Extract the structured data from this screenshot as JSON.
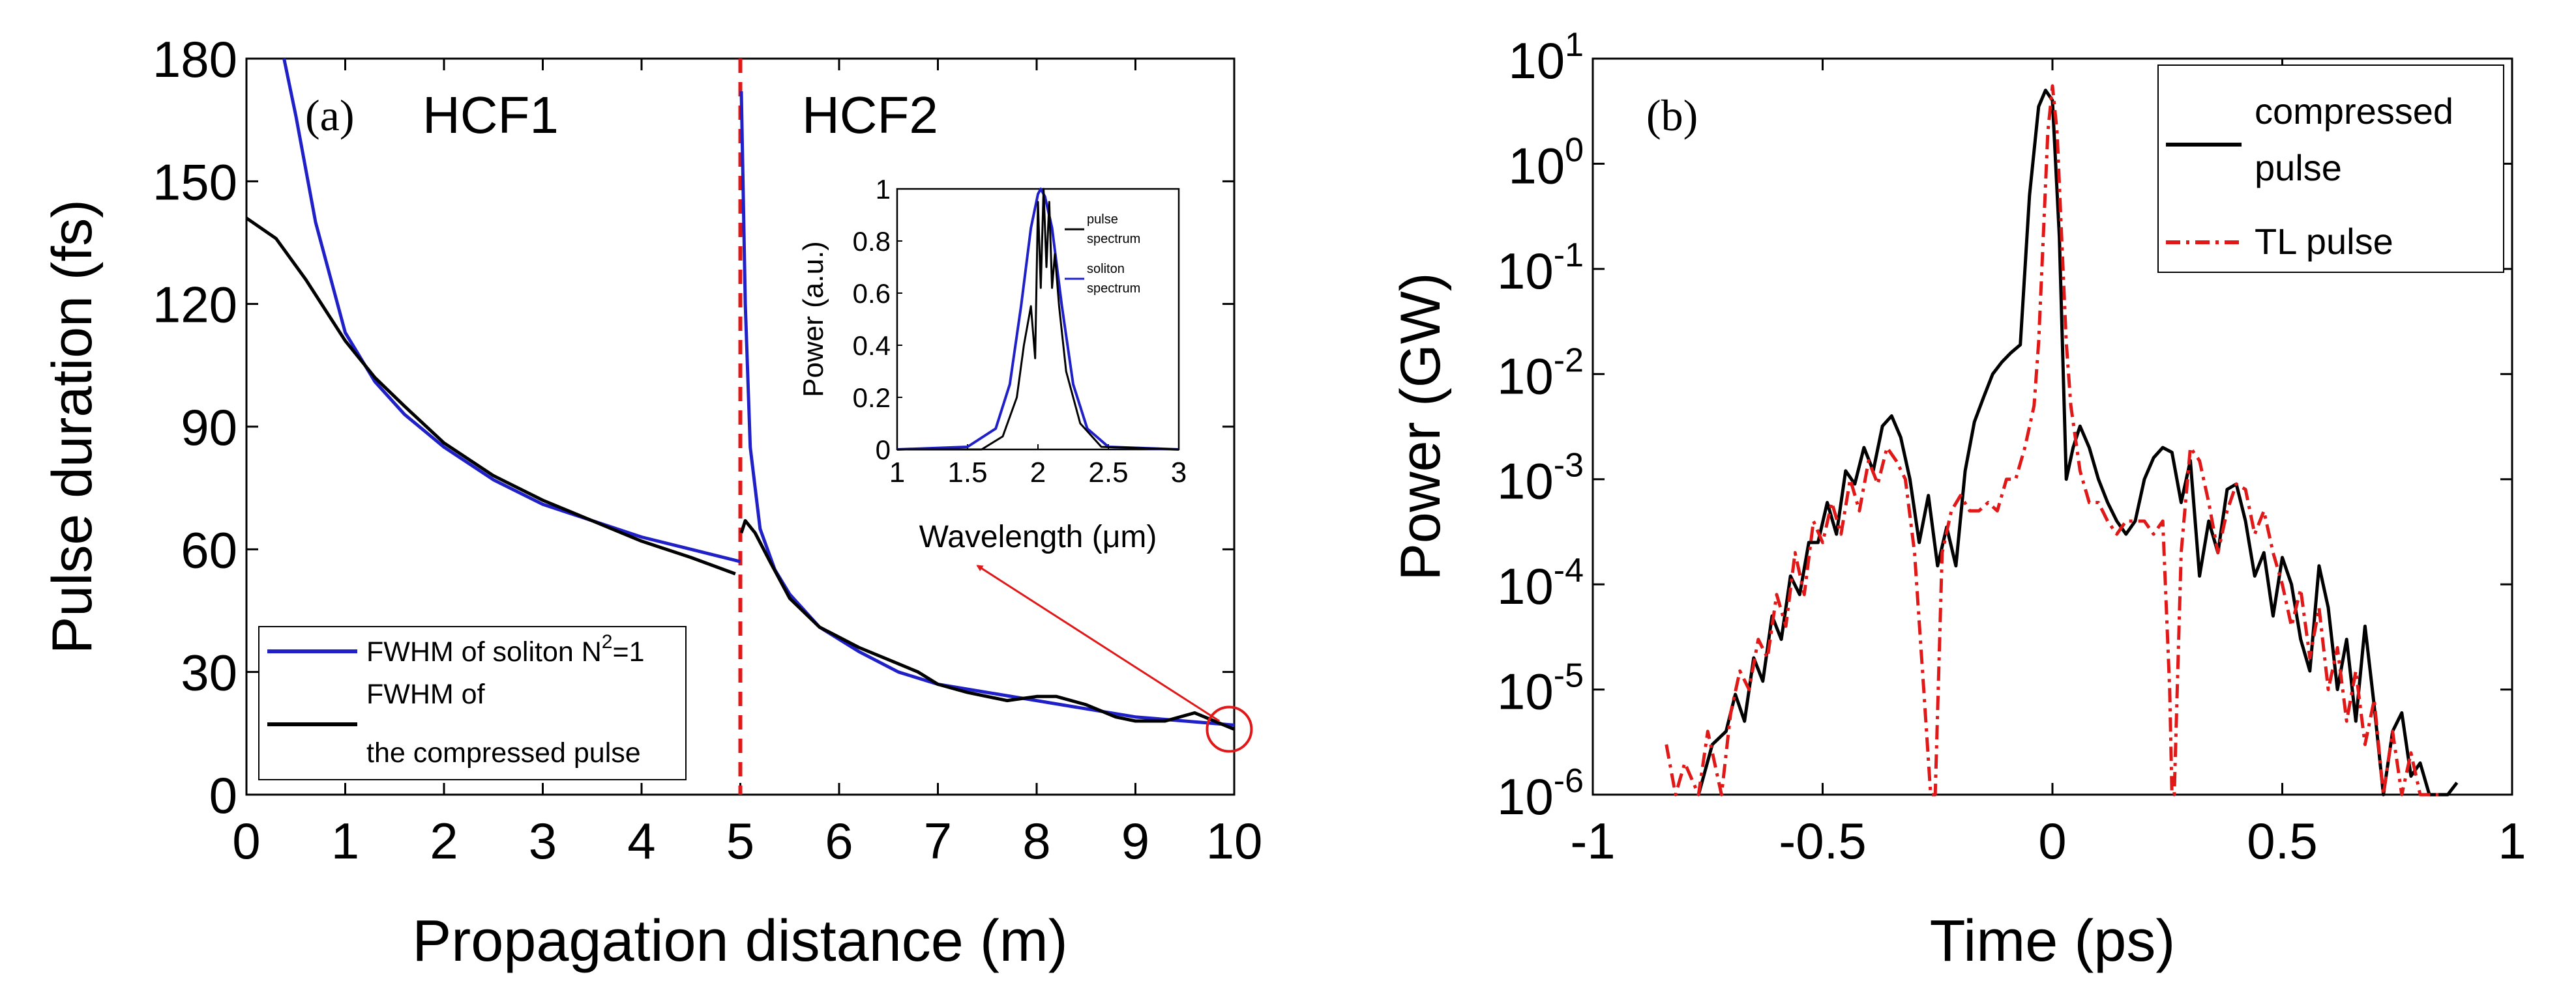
{
  "chart_data": [
    {
      "type": "line",
      "panel_label": "(a)",
      "xlabel": "Propagation distance (m)",
      "ylabel": "Pulse duration (fs)",
      "xlim": [
        0,
        10
      ],
      "ylim": [
        0,
        180
      ],
      "xticks": [
        "0",
        "1",
        "2",
        "3",
        "4",
        "5",
        "6",
        "7",
        "8",
        "9",
        "10"
      ],
      "yticks": [
        "0",
        "30",
        "60",
        "90",
        "120",
        "150",
        "180"
      ],
      "region_labels": [
        "HCF1",
        "HCF2"
      ],
      "divider_x": 5,
      "legend": {
        "position": "bottom-left",
        "soliton_label_prefix": "FWHM of soliton N",
        "soliton_label_sup": "2",
        "soliton_label_suffix": "=1",
        "compressed_label_line1": "FWHM of",
        "compressed_label_line2": "the compressed pulse"
      },
      "series": [
        {
          "name": "FWHM of soliton N2=1",
          "color": "#2020c8",
          "x": [
            0.38,
            0.5,
            0.7,
            1.0,
            1.3,
            1.6,
            2.0,
            2.5,
            3.0,
            3.5,
            4.0,
            4.5,
            5.0
          ],
          "y": [
            180,
            166,
            140,
            113,
            101,
            93,
            85,
            77,
            71,
            67,
            63,
            60,
            57
          ]
        },
        {
          "name": "FWHM of the compressed pulse",
          "color": "#000000",
          "x": [
            0,
            0.3,
            0.6,
            1.0,
            1.3,
            1.6,
            2.0,
            2.5,
            3.0,
            3.5,
            4.0,
            4.5,
            4.95
          ],
          "y": [
            141,
            136,
            126,
            111,
            102,
            95,
            86,
            78,
            72,
            67,
            62,
            58,
            54
          ]
        },
        {
          "name": "FWHM of soliton (HCF2)",
          "color": "#2020c8",
          "x": [
            5.01,
            5.05,
            5.1,
            5.2,
            5.35,
            5.5,
            5.8,
            6.2,
            6.6,
            7.0,
            7.5,
            8.0,
            8.5,
            9.0,
            9.5,
            10.0
          ],
          "y": [
            172,
            120,
            85,
            65,
            55,
            49,
            41,
            35,
            30,
            27,
            25,
            23,
            21,
            19,
            18,
            17
          ]
        },
        {
          "name": "compressed pulse (HCF2)",
          "color": "#000000",
          "x": [
            5.01,
            5.05,
            5.15,
            5.3,
            5.5,
            5.8,
            6.2,
            6.5,
            6.8,
            7.0,
            7.3,
            7.7,
            8.0,
            8.2,
            8.5,
            8.8,
            9.0,
            9.3,
            9.6,
            9.9,
            10.0
          ],
          "y": [
            64,
            67,
            64,
            57,
            48,
            41,
            36,
            33,
            30,
            27,
            25,
            23,
            24,
            24,
            22,
            19,
            18,
            18,
            20,
            17,
            16
          ]
        }
      ],
      "arrow": {
        "from": [
          9.85,
          18
        ],
        "to": [
          7.4,
          56
        ]
      },
      "marker_circle": {
        "x": 9.95,
        "y": 16
      },
      "inset": {
        "type": "line",
        "xlabel": "Wavelength (μm)",
        "ylabel": "Power (a.u.)",
        "xlim": [
          1,
          3
        ],
        "ylim": [
          0,
          1
        ],
        "xticks": [
          "1",
          "1.5",
          "2",
          "2.5",
          "3"
        ],
        "yticks": [
          "0",
          "0.2",
          "0.4",
          "0.6",
          "0.8",
          "1"
        ],
        "legend": {
          "pulse_line1": "pulse",
          "pulse_line2": "spectrum",
          "soliton_line1": "soliton",
          "soliton_line2": "spectrum"
        },
        "series": [
          {
            "name": "pulse spectrum",
            "color": "#000000",
            "x": [
              1.0,
              1.6,
              1.75,
              1.85,
              1.9,
              1.95,
              1.98,
              2.0,
              2.02,
              2.04,
              2.06,
              2.08,
              2.1,
              2.12,
              2.15,
              2.2,
              2.3,
              2.45,
              3.0
            ],
            "y": [
              0,
              0.0,
              0.05,
              0.2,
              0.4,
              0.55,
              0.35,
              0.95,
              0.62,
              1.0,
              0.7,
              0.95,
              0.62,
              0.75,
              0.55,
              0.3,
              0.1,
              0.01,
              0
            ]
          },
          {
            "name": "soliton spectrum",
            "color": "#2020c8",
            "x": [
              1.0,
              1.5,
              1.7,
              1.8,
              1.88,
              1.95,
              2.0,
              2.02,
              2.05,
              2.1,
              2.17,
              2.25,
              2.35,
              2.5,
              3.0
            ],
            "y": [
              0,
              0.01,
              0.08,
              0.25,
              0.55,
              0.85,
              0.98,
              1.0,
              0.97,
              0.85,
              0.55,
              0.25,
              0.08,
              0.01,
              0
            ]
          }
        ]
      }
    },
    {
      "type": "line",
      "panel_label": "(b)",
      "xlabel": "Time (ps)",
      "ylabel": "Power (GW)",
      "xlim": [
        -1,
        1
      ],
      "ylim": [
        1e-06,
        10
      ],
      "yscale": "log",
      "xticks": [
        "-1",
        "-0.5",
        "0",
        "0.5",
        "1"
      ],
      "yticks": [
        {
          "base": "10",
          "exp": "-6"
        },
        {
          "base": "10",
          "exp": "-5"
        },
        {
          "base": "10",
          "exp": "-4"
        },
        {
          "base": "10",
          "exp": "-3"
        },
        {
          "base": "10",
          "exp": "-2"
        },
        {
          "base": "10",
          "exp": "-1"
        },
        {
          "base": "10",
          "exp": "0"
        },
        {
          "base": "10",
          "exp": "1"
        }
      ],
      "legend": {
        "position": "top-right",
        "compressed_line1": "compressed",
        "compressed_line2": "pulse",
        "tl_label": "TL pulse"
      },
      "series": [
        {
          "name": "compressed pulse",
          "color": "#000000",
          "x": [
            -0.77,
            -0.74,
            -0.71,
            -0.69,
            -0.67,
            -0.65,
            -0.63,
            -0.61,
            -0.59,
            -0.57,
            -0.55,
            -0.53,
            -0.51,
            -0.49,
            -0.47,
            -0.45,
            -0.43,
            -0.41,
            -0.39,
            -0.37,
            -0.35,
            -0.33,
            -0.31,
            -0.29,
            -0.27,
            -0.25,
            -0.23,
            -0.21,
            -0.19,
            -0.17,
            -0.15,
            -0.13,
            -0.11,
            -0.09,
            -0.07,
            -0.05,
            -0.03,
            -0.015,
            0,
            0.015,
            0.03,
            0.045,
            0.06,
            0.08,
            0.1,
            0.12,
            0.14,
            0.16,
            0.18,
            0.2,
            0.22,
            0.24,
            0.26,
            0.28,
            0.3,
            0.32,
            0.34,
            0.36,
            0.38,
            0.4,
            0.42,
            0.44,
            0.46,
            0.48,
            0.5,
            0.52,
            0.54,
            0.56,
            0.58,
            0.6,
            0.62,
            0.64,
            0.66,
            0.68,
            0.7,
            0.72,
            0.74,
            0.76,
            0.78,
            0.8,
            0.82,
            0.84,
            0.86,
            0.88
          ],
          "y": [
            1e-06,
            3e-06,
            4e-06,
            9e-06,
            5e-06,
            2e-05,
            1.2e-05,
            5e-05,
            3e-05,
            0.00012,
            8e-05,
            0.00025,
            0.00025,
            0.0006,
            0.0003,
            0.0012,
            0.0009,
            0.002,
            0.0012,
            0.0032,
            0.004,
            0.0025,
            0.001,
            0.00025,
            0.0007,
            0.00015,
            0.00035,
            0.00015,
            0.0012,
            0.0035,
            0.006,
            0.01,
            0.013,
            0.016,
            0.019,
            0.5,
            3.5,
            5,
            4,
            0.2,
            0.001,
            0.002,
            0.0032,
            0.002,
            0.001,
            0.0006,
            0.0004,
            0.0003,
            0.0004,
            0.001,
            0.0016,
            0.002,
            0.0018,
            0.0006,
            0.0015,
            0.00012,
            0.0004,
            0.0002,
            0.0008,
            0.0009,
            0.0004,
            0.00012,
            0.0002,
            5e-05,
            0.00018,
            0.0001,
            3e-05,
            1.5e-05,
            0.00015,
            6e-05,
            1e-05,
            3e-05,
            5e-06,
            4e-05,
            7e-06,
            1e-06,
            4e-06,
            6e-06,
            1.5e-06,
            2e-06,
            1e-06,
            1e-06,
            1e-06,
            1.3e-06
          ]
        },
        {
          "name": "TL pulse",
          "color": "#e01818",
          "x": [
            -0.84,
            -0.82,
            -0.8,
            -0.77,
            -0.75,
            -0.72,
            -0.7,
            -0.68,
            -0.66,
            -0.64,
            -0.62,
            -0.6,
            -0.58,
            -0.56,
            -0.54,
            -0.52,
            -0.5,
            -0.48,
            -0.46,
            -0.44,
            -0.42,
            -0.4,
            -0.38,
            -0.36,
            -0.34,
            -0.32,
            -0.3,
            -0.28,
            -0.265,
            -0.26,
            -0.255,
            -0.24,
            -0.22,
            -0.2,
            -0.18,
            -0.16,
            -0.14,
            -0.12,
            -0.1,
            -0.08,
            -0.06,
            -0.04,
            -0.03,
            -0.02,
            -0.01,
            0,
            0.01,
            0.02,
            0.03,
            0.04,
            0.06,
            0.08,
            0.1,
            0.12,
            0.14,
            0.16,
            0.18,
            0.2,
            0.22,
            0.24,
            0.255,
            0.26,
            0.265,
            0.28,
            0.3,
            0.32,
            0.34,
            0.36,
            0.38,
            0.4,
            0.42,
            0.44,
            0.46,
            0.48,
            0.5,
            0.52,
            0.54,
            0.56,
            0.58,
            0.6,
            0.62,
            0.64,
            0.66,
            0.68,
            0.7,
            0.72,
            0.74,
            0.76,
            0.78,
            0.8,
            0.82,
            0.84
          ],
          "y": [
            3e-06,
            1e-06,
            2e-06,
            1e-06,
            4e-06,
            1e-06,
            6e-06,
            1.5e-05,
            1e-05,
            3e-05,
            2e-05,
            8e-05,
            4e-05,
            0.0002,
            8e-05,
            0.0004,
            0.00025,
            0.0006,
            0.0003,
            0.001,
            0.0005,
            0.0015,
            0.0009,
            0.002,
            0.0015,
            0.001,
            0.0002,
            1e-05,
            1e-06,
            1e-06,
            1e-06,
            0.0002,
            0.0005,
            0.0007,
            0.0005,
            0.0005,
            0.0006,
            0.0005,
            0.001,
            0.001,
            0.002,
            0.005,
            0.02,
            0.2,
            2,
            5.5,
            2,
            0.2,
            0.02,
            0.005,
            0.0012,
            0.0006,
            0.0006,
            0.0004,
            0.0003,
            0.0004,
            0.0004,
            0.0004,
            0.0003,
            0.0004,
            1e-05,
            1e-06,
            1e-06,
            0.0002,
            0.002,
            0.0015,
            0.0006,
            0.0002,
            0.0005,
            0.0009,
            0.0008,
            0.0003,
            0.0005,
            0.0002,
            0.0001,
            4e-05,
            9e-05,
            2e-05,
            6e-05,
            1e-05,
            2.5e-05,
            5e-06,
            1.5e-05,
            3e-06,
            8e-06,
            1e-06,
            4e-06,
            1e-06,
            2.5e-06,
            1e-06,
            1e-06,
            1e-06
          ]
        }
      ]
    }
  ]
}
